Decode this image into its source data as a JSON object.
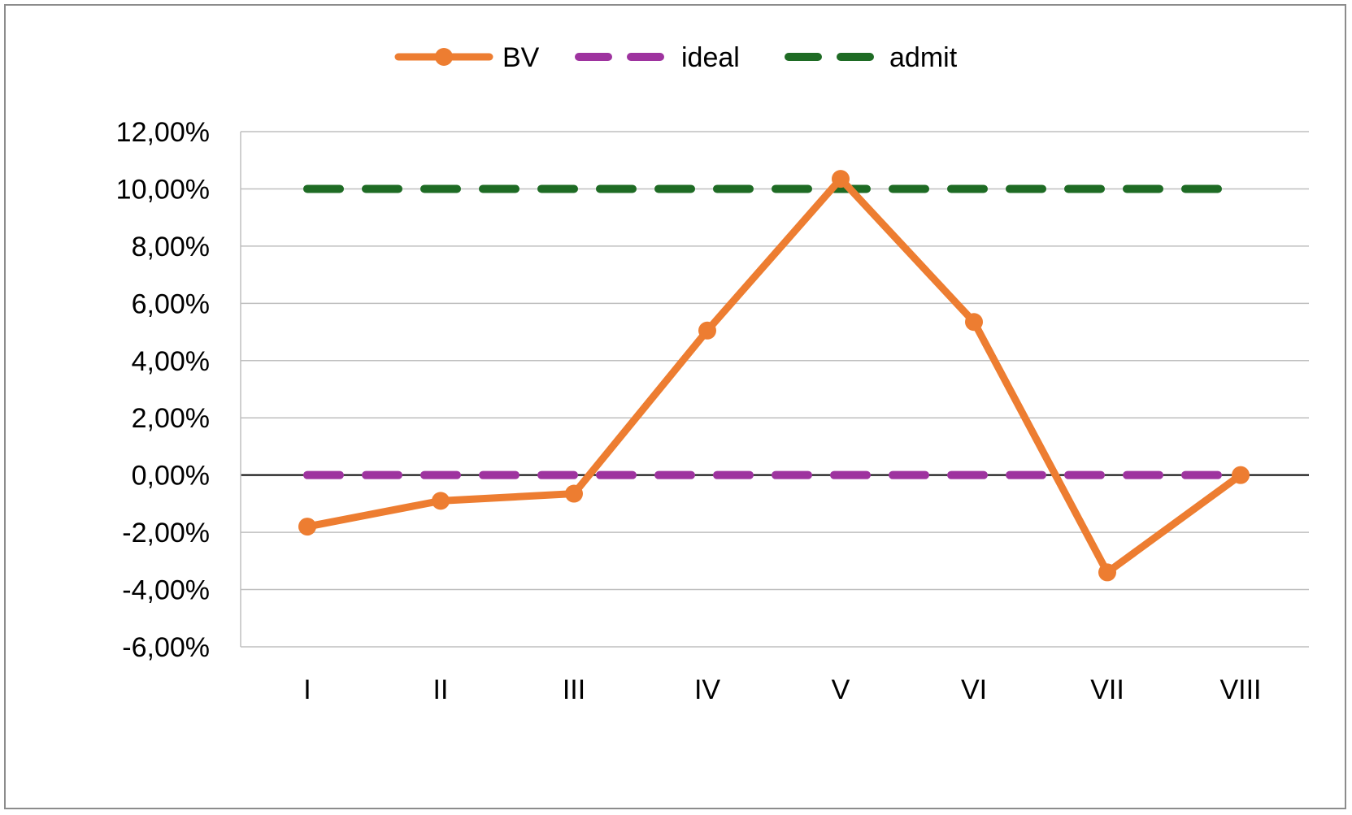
{
  "chart_data": {
    "type": "line",
    "categories": [
      "I",
      "II",
      "III",
      "IV",
      "V",
      "VI",
      "VII",
      "VIII"
    ],
    "series": [
      {
        "name": "BV",
        "values": [
          -1.8,
          -0.9,
          -0.65,
          5.05,
          10.35,
          5.35,
          -3.4,
          0.0
        ],
        "color": "#ED7D31",
        "style": "solid",
        "marker": "circle"
      },
      {
        "name": "ideal",
        "values": [
          0,
          0,
          0,
          0,
          0,
          0,
          0,
          0
        ],
        "color": "#9E339F",
        "style": "dashed",
        "marker": "none"
      },
      {
        "name": "admit",
        "values": [
          10,
          10,
          10,
          10,
          10,
          10,
          10,
          10
        ],
        "color": "#1E6B24",
        "style": "dashed",
        "marker": "none"
      }
    ],
    "ylim": [
      -6,
      12
    ],
    "yticks": [
      12,
      10,
      8,
      6,
      4,
      2,
      0,
      -2,
      -4,
      -6
    ],
    "ytick_labels": [
      "12,00%",
      "10,00%",
      "8,00%",
      "6,00%",
      "4,00%",
      "2,00%",
      "0,00%",
      "-2,00%",
      "-4,00%",
      "-6,00%"
    ],
    "grid": true,
    "legend_position": "top-center",
    "zero_line_color": "#000000",
    "grid_color": "#BFBFBF"
  }
}
